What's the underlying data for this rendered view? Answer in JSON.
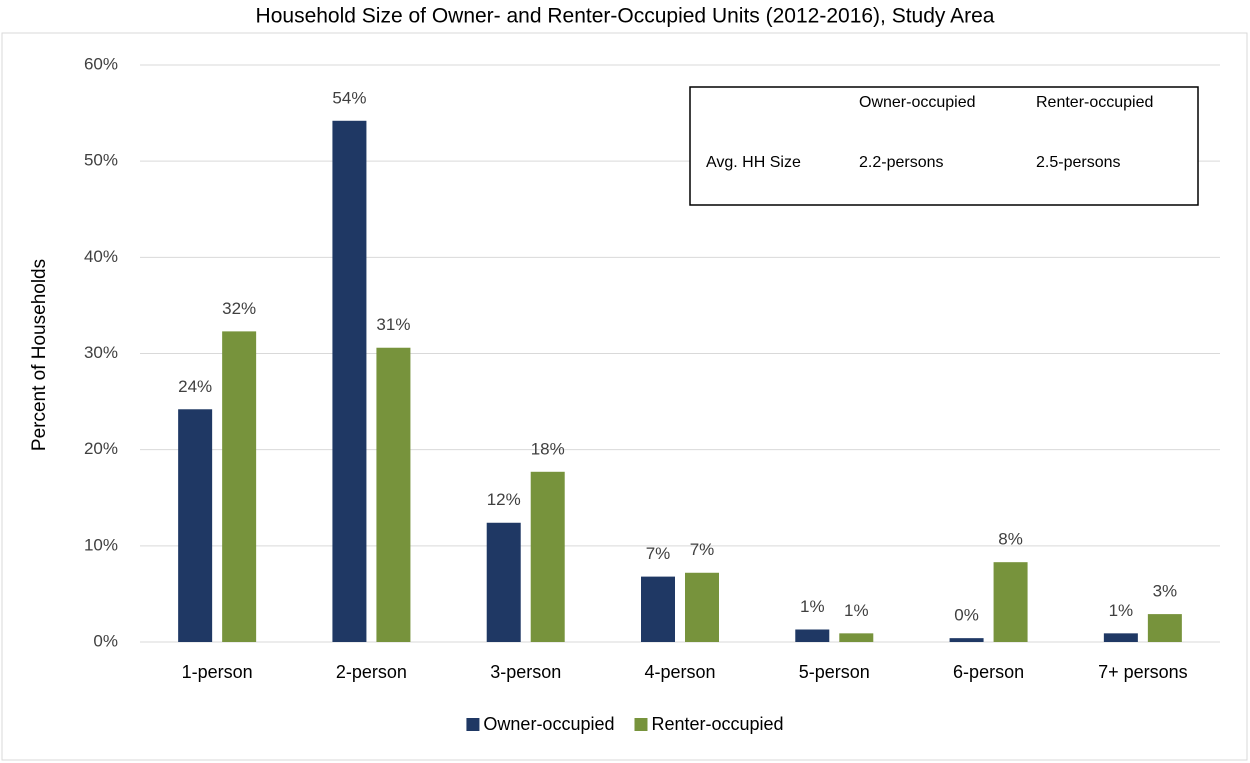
{
  "chart_data": {
    "type": "bar",
    "title": "Household Size of Owner- and Renter-Occupied Units (2012-2016), Study Area",
    "y_label": "Percent of Households",
    "categories": [
      "1-person",
      "2-person",
      "3-person",
      "4-person",
      "5-person",
      "6-person",
      "7+ persons"
    ],
    "series": [
      {
        "name": "Owner-occupied",
        "color": "#1f3864",
        "values": [
          24.2,
          54.2,
          12.4,
          6.8,
          1.3,
          0.4,
          0.9
        ],
        "value_labels": [
          "24%",
          "54%",
          "12%",
          "7%",
          "1%",
          "0%",
          "1%"
        ]
      },
      {
        "name": "Renter-occupied",
        "color": "#77933c",
        "values": [
          32.3,
          30.6,
          17.7,
          7.2,
          0.9,
          8.3,
          2.9
        ],
        "value_labels": [
          "32%",
          "31%",
          "18%",
          "7%",
          "1%",
          "8%",
          "3%"
        ]
      }
    ],
    "ylim": [
      0,
      60
    ],
    "yticks": [
      {
        "value": 0,
        "label": "0%"
      },
      {
        "value": 10,
        "label": "10%"
      },
      {
        "value": 20,
        "label": "20%"
      },
      {
        "value": 30,
        "label": "30%"
      },
      {
        "value": 40,
        "label": "40%"
      },
      {
        "value": 50,
        "label": "50%"
      },
      {
        "value": 60,
        "label": "60%"
      }
    ],
    "grid": true,
    "legend": "bottom",
    "inset_table": {
      "header": [
        "Owner-occupied",
        "Renter-occupied"
      ],
      "rows": [
        {
          "label": "Avg. HH Size",
          "cells": [
            "2.2-persons",
            "2.5-persons"
          ]
        }
      ]
    }
  }
}
